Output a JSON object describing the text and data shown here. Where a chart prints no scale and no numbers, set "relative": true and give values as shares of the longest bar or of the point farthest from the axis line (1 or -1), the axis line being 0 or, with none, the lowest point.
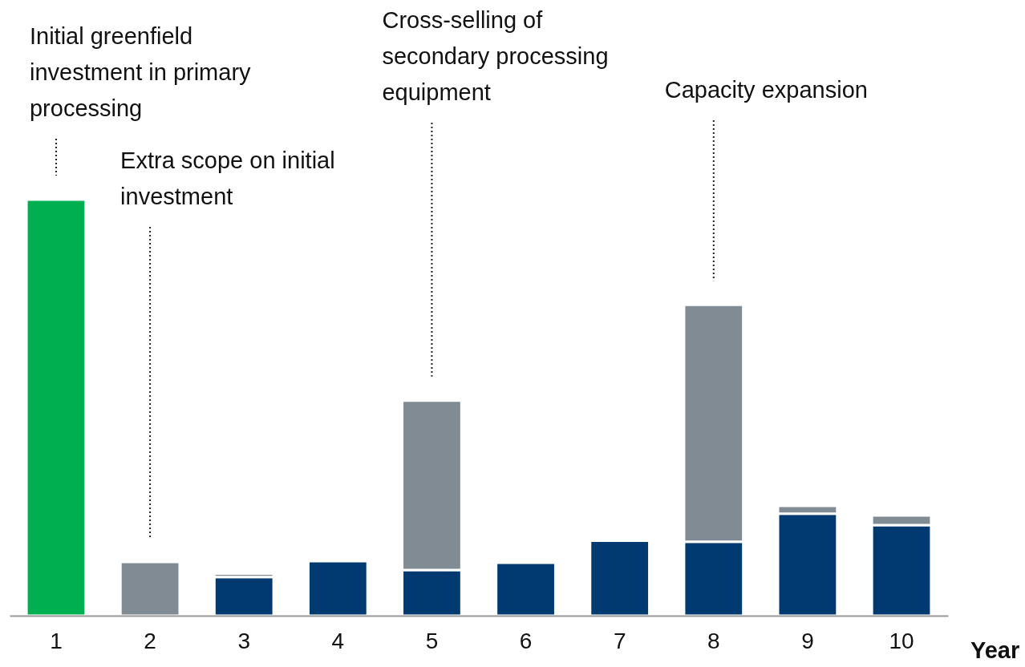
{
  "chart_data": {
    "type": "bar",
    "stacked": true,
    "relative": true,
    "xlabel": "Year",
    "categories": [
      "1",
      "2",
      "3",
      "4",
      "5",
      "6",
      "7",
      "8",
      "9",
      "10"
    ],
    "series": [
      {
        "color": "#003a70",
        "values": [
          null,
          null,
          0.093,
          0.131,
          0.11,
          0.127,
          0.18,
          0.178,
          0.245,
          0.218
        ]
      },
      {
        "color": "#808b94",
        "values": [
          null,
          0.129,
          0.008,
          null,
          0.407,
          null,
          null,
          0.569,
          0.019,
          0.023
        ]
      },
      {
        "color": "#00b050",
        "values": [
          1,
          null,
          null,
          null,
          null,
          null,
          null,
          null,
          null,
          null
        ]
      }
    ],
    "annotations": [
      "Initial greenfield investment in primary processing",
      "Extra scope on initial investment",
      "Cross-selling of secondary processing equipment",
      "Capacity expansion"
    ]
  }
}
